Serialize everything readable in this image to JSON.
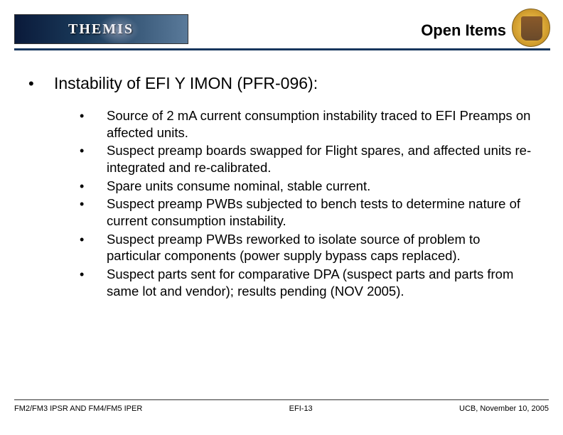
{
  "header": {
    "logo_text": "THEMIS",
    "title": "Open Items"
  },
  "content": {
    "main_heading": "Instability of EFI Y IMON (PFR-096):",
    "sub_items": [
      "Source of 2 mA current consumption instability traced to EFI Preamps on affected units.",
      "Suspect preamp boards swapped for Flight spares, and affected units re-integrated and re-calibrated.",
      "Spare units consume nominal, stable current.",
      "Suspect preamp PWBs subjected to bench tests to determine nature of current consumption instability.",
      "Suspect preamp PWBs reworked to isolate source of problem to particular components (power supply bypass caps replaced).",
      "Suspect parts sent for comparative DPA (suspect parts and parts from same lot and vendor); results pending (NOV 2005)."
    ]
  },
  "footer": {
    "left": "FM2/FM3 IPSR AND FM4/FM5 IPER",
    "center_prefix": "EFI-",
    "center_page": "13",
    "right": "UCB, November 10, 2005"
  },
  "colors": {
    "rule": "#17365d",
    "text": "#000000",
    "background": "#ffffff"
  },
  "typography": {
    "title_fontsize": 22,
    "main_fontsize": 23,
    "sub_fontsize": 18.5,
    "footer_fontsize": 11
  }
}
